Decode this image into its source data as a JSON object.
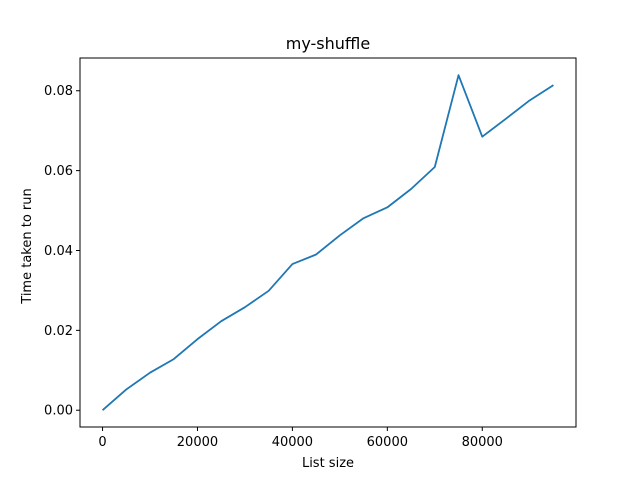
{
  "chart_data": {
    "type": "line",
    "title": "my-shuffle",
    "xlabel": "List size",
    "ylabel": "Time taken to run",
    "xlim": [
      -4750,
      99750
    ],
    "ylim": [
      -0.0042,
      0.0882
    ],
    "xticks": [
      0,
      20000,
      40000,
      60000,
      80000
    ],
    "xtick_labels": [
      "0",
      "20000",
      "40000",
      "60000",
      "80000"
    ],
    "yticks": [
      0.0,
      0.02,
      0.04,
      0.06,
      0.08
    ],
    "ytick_labels": [
      "0.00",
      "0.02",
      "0.04",
      "0.06",
      "0.08"
    ],
    "grid": false,
    "line_color": "#1f77b4",
    "series": [
      {
        "x": [
          0,
          5000,
          10000,
          15000,
          20000,
          25000,
          30000,
          35000,
          40000,
          45000,
          50000,
          55000,
          60000,
          65000,
          70000,
          75000,
          80000,
          85000,
          90000,
          95000
        ],
        "y": [
          0.0,
          0.0052,
          0.0094,
          0.0128,
          0.0178,
          0.0223,
          0.0258,
          0.0299,
          0.0366,
          0.039,
          0.0438,
          0.0481,
          0.0508,
          0.0554,
          0.0609,
          0.0839,
          0.0685,
          0.073,
          0.0776,
          0.0814
        ]
      }
    ]
  }
}
